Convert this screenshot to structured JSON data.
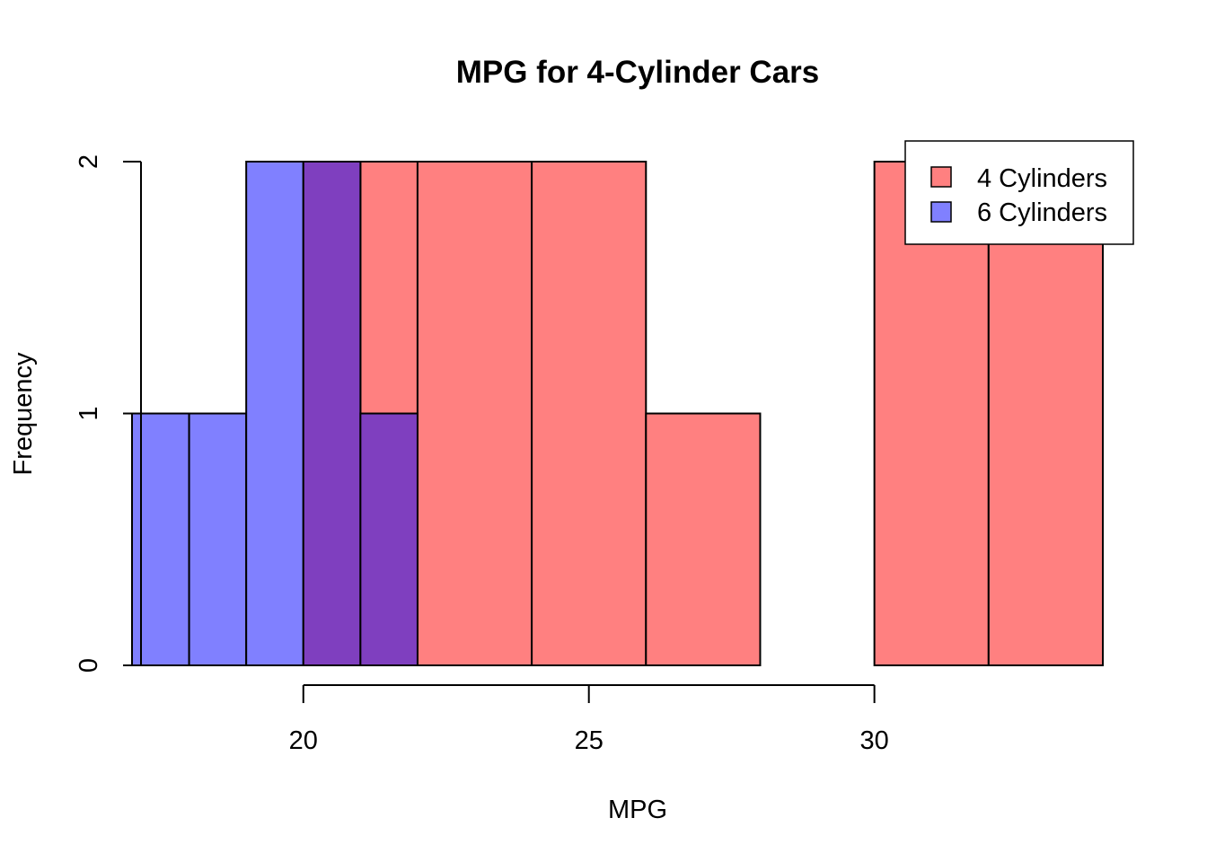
{
  "chart_data": {
    "type": "bar",
    "title": "MPG for 4-Cylinder Cars",
    "xlabel": "MPG",
    "ylabel": "Frequency",
    "xlim": [
      17,
      34
    ],
    "ylim": [
      0,
      2
    ],
    "x_ticks": [
      20,
      25,
      30
    ],
    "y_ticks": [
      0,
      1,
      2
    ],
    "grid": false,
    "legend_position": "top-right",
    "overlap_color": "#7F3FBF",
    "series": [
      {
        "name": "4 Cylinders",
        "color": "#FF8080",
        "bins": [
          {
            "x0": 21,
            "x1": 22,
            "count": 2
          },
          {
            "x0": 22,
            "x1": 24,
            "count": 2
          },
          {
            "x0": 24,
            "x1": 26,
            "count": 2
          },
          {
            "x0": 26,
            "x1": 28,
            "count": 1
          },
          {
            "x0": 28,
            "x1": 30,
            "count": 0
          },
          {
            "x0": 30,
            "x1": 32,
            "count": 2
          },
          {
            "x0": 32,
            "x1": 34,
            "count": 2
          }
        ]
      },
      {
        "name": "6 Cylinders",
        "color": "#8080FF",
        "bins": [
          {
            "x0": 17,
            "x1": 18,
            "count": 1
          },
          {
            "x0": 18,
            "x1": 19,
            "count": 1
          },
          {
            "x0": 19,
            "x1": 20,
            "count": 2
          },
          {
            "x0": 20,
            "x1": 21,
            "count": 2
          },
          {
            "x0": 21,
            "x1": 22,
            "count": 1
          }
        ]
      }
    ]
  }
}
